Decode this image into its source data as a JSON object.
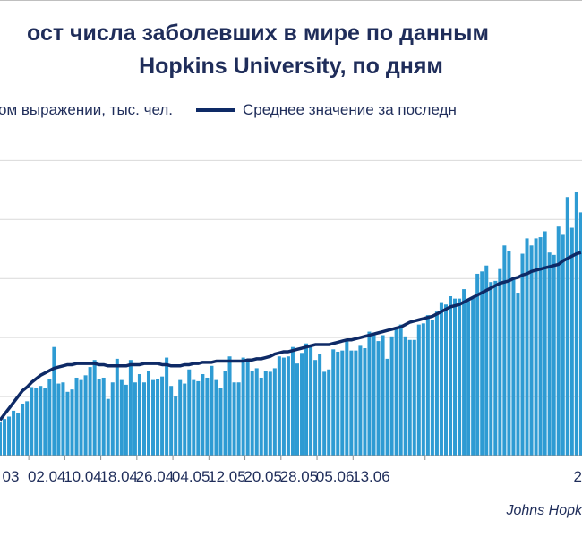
{
  "chart_data": {
    "type": "bar",
    "title_line1": "ост числа заболевших в мире по данным",
    "title_line2": "Hopkins University, по дням",
    "series": [
      {
        "name": "ом выражении, тыс. чел.",
        "kind": "bar",
        "color": "#2e9bd3",
        "values": [
          58,
          61,
          63,
          68,
          66,
          74,
          76,
          88,
          87,
          89,
          87,
          95,
          122,
          91,
          92,
          84,
          86,
          96,
          94,
          98,
          105,
          111,
          95,
          96,
          78,
          92,
          112,
          94,
          90,
          111,
          92,
          99,
          92,
          102,
          94,
          95,
          97,
          113,
          89,
          80,
          94,
          91,
          103,
          94,
          93,
          99,
          96,
          106,
          94,
          87,
          102,
          114,
          92,
          92,
          113,
          112,
          102,
          104,
          96,
          102,
          101,
          104,
          114,
          113,
          114,
          122,
          108,
          117,
          125,
          123,
          111,
          116,
          101,
          103,
          120,
          118,
          119,
          127,
          119,
          119,
          123,
          121,
          135,
          132,
          127,
          132,
          112,
          131,
          139,
          141,
          131,
          128,
          128,
          141,
          142,
          149,
          145,
          152,
          160,
          158,
          165,
          163,
          163,
          171,
          161,
          163,
          184,
          186,
          191,
          177,
          178,
          188,
          208,
          203,
          181,
          168,
          201,
          214,
          208,
          214,
          215,
          220,
          202,
          200,
          224,
          217,
          249,
          223,
          253,
          236
        ]
      },
      {
        "name": "Среднее значение за последн",
        "kind": "line",
        "color": "#0e2a66",
        "values": [
          60,
          65,
          70,
          75,
          80,
          85,
          88,
          92,
          95,
          98,
          100,
          102,
          104,
          105,
          106,
          107,
          107,
          108,
          108,
          108,
          108,
          108,
          107,
          107,
          106,
          106,
          106,
          106,
          106,
          107,
          107,
          107,
          108,
          108,
          108,
          108,
          107,
          107,
          106,
          106,
          106,
          107,
          107,
          108,
          108,
          109,
          109,
          109,
          110,
          110,
          110,
          110,
          110,
          110,
          110,
          111,
          111,
          112,
          112,
          113,
          114,
          116,
          117,
          118,
          118,
          119,
          120,
          121,
          122,
          123,
          124,
          124,
          124,
          124,
          125,
          126,
          127,
          128,
          128,
          129,
          130,
          131,
          132,
          133,
          134,
          135,
          136,
          137,
          138,
          139,
          141,
          143,
          144,
          145,
          146,
          147,
          148,
          150,
          152,
          154,
          156,
          157,
          158,
          160,
          162,
          164,
          166,
          168,
          170,
          172,
          174,
          176,
          177,
          178,
          180,
          181,
          183,
          184,
          186,
          187,
          188,
          189,
          190,
          191,
          192,
          195,
          197,
          199,
          201,
          202
        ]
      }
    ],
    "ylim": [
      30,
      300
    ],
    "x_tick_labels": [
      "03",
      "02.04",
      "10.04",
      "18.04",
      "26.04",
      "04.05",
      "12.05",
      "20.05",
      "28.05",
      "05.06",
      "13.06",
      "2"
    ],
    "grid": true
  },
  "legend": {
    "bars_label": "ом выражении, тыс. чел.",
    "line_label": "Среднее значение за последн"
  },
  "source": "Johns Hopk"
}
